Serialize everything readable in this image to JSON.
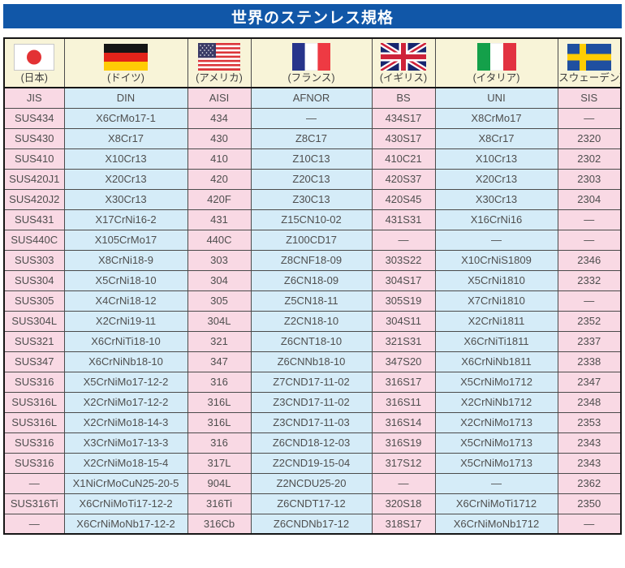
{
  "title": "世界のステンレス規格",
  "colors": {
    "title_bar_bg": "#1157A8",
    "pink_cell": "#F9D9E4",
    "blue_cell": "#D5ECF8",
    "flag_row_bg": "#F8F4D8"
  },
  "countries": [
    {
      "flag": "japan-flag-icon",
      "label": "(日本)"
    },
    {
      "flag": "germany-flag-icon",
      "label": "(ドイツ)"
    },
    {
      "flag": "usa-flag-icon",
      "label": "(アメリカ)"
    },
    {
      "flag": "france-flag-icon",
      "label": "(フランス)"
    },
    {
      "flag": "uk-flag-icon",
      "label": "(イギリス)"
    },
    {
      "flag": "italy-flag-icon",
      "label": "(イタリア)"
    },
    {
      "flag": "sweden-flag-icon",
      "label": "(スウェーデン)"
    }
  ],
  "table": {
    "headers": [
      "JIS",
      "DIN",
      "AISI",
      "AFNOR",
      "BS",
      "UNI",
      "SIS"
    ],
    "rows": [
      [
        "SUS434",
        "X6CrMo17-1",
        "434",
        "—",
        "434S17",
        "X8CrMo17",
        "—"
      ],
      [
        "SUS430",
        "X8Cr17",
        "430",
        "Z8C17",
        "430S17",
        "X8Cr17",
        "2320"
      ],
      [
        "SUS410",
        "X10Cr13",
        "410",
        "Z10C13",
        "410C21",
        "X10Cr13",
        "2302"
      ],
      [
        "SUS420J1",
        "X20Cr13",
        "420",
        "Z20C13",
        "420S37",
        "X20Cr13",
        "2303"
      ],
      [
        "SUS420J2",
        "X30Cr13",
        "420F",
        "Z30C13",
        "420S45",
        "X30Cr13",
        "2304"
      ],
      [
        "SUS431",
        "X17CrNi16-2",
        "431",
        "Z15CN10-02",
        "431S31",
        "X16CrNi16",
        "—"
      ],
      [
        "SUS440C",
        "X105CrMo17",
        "440C",
        "Z100CD17",
        "—",
        "—",
        "—"
      ],
      [
        "SUS303",
        "X8CrNi18-9",
        "303",
        "Z8CNF18-09",
        "303S22",
        "X10CrNiS1809",
        "2346"
      ],
      [
        "SUS304",
        "X5CrNi18-10",
        "304",
        "Z6CN18-09",
        "304S17",
        "X5CrNi1810",
        "2332"
      ],
      [
        "SUS305",
        "X4CrNi18-12",
        "305",
        "Z5CN18-11",
        "305S19",
        "X7CrNi1810",
        "—"
      ],
      [
        "SUS304L",
        "X2CrNi19-11",
        "304L",
        "Z2CN18-10",
        "304S11",
        "X2CrNi1811",
        "2352"
      ],
      [
        "SUS321",
        "X6CrNiTi18-10",
        "321",
        "Z6CNT18-10",
        "321S31",
        "X6CrNiTi1811",
        "2337"
      ],
      [
        "SUS347",
        "X6CrNiNb18-10",
        "347",
        "Z6CNNb18-10",
        "347S20",
        "X6CrNiNb1811",
        "2338"
      ],
      [
        "SUS316",
        "X5CrNiMo17-12-2",
        "316",
        "Z7CND17-11-02",
        "316S17",
        "X5CrNiMo1712",
        "2347"
      ],
      [
        "SUS316L",
        "X2CrNiMo17-12-2",
        "316L",
        "Z3CND17-11-02",
        "316S11",
        "X2CrNiNb1712",
        "2348"
      ],
      [
        "SUS316L",
        "X2CrNiMo18-14-3",
        "316L",
        "Z3CND17-11-03",
        "316S14",
        "X2CrNiMo1713",
        "2353"
      ],
      [
        "SUS316",
        "X3CrNiMo17-13-3",
        "316",
        "Z6CND18-12-03",
        "316S19",
        "X5CrNiMo1713",
        "2343"
      ],
      [
        "SUS316",
        "X2CrNiMo18-15-4",
        "317L",
        "Z2CND19-15-04",
        "317S12",
        "X5CrNiMo1713",
        "2343"
      ],
      [
        "—",
        "X1NiCrMoCuN25-20-5",
        "904L",
        "Z2NCDU25-20",
        "—",
        "—",
        "2362"
      ],
      [
        "SUS316Ti",
        "X6CrNiMoTi17-12-2",
        "316Ti",
        "Z6CNDT17-12",
        "320S18",
        "X6CrNiMoTi1712",
        "2350"
      ],
      [
        "—",
        "X6CrNiMoNb17-12-2",
        "316Cb",
        "Z6CNDNb17-12",
        "318S17",
        "X6CrNiMoNb1712",
        "—"
      ]
    ]
  }
}
